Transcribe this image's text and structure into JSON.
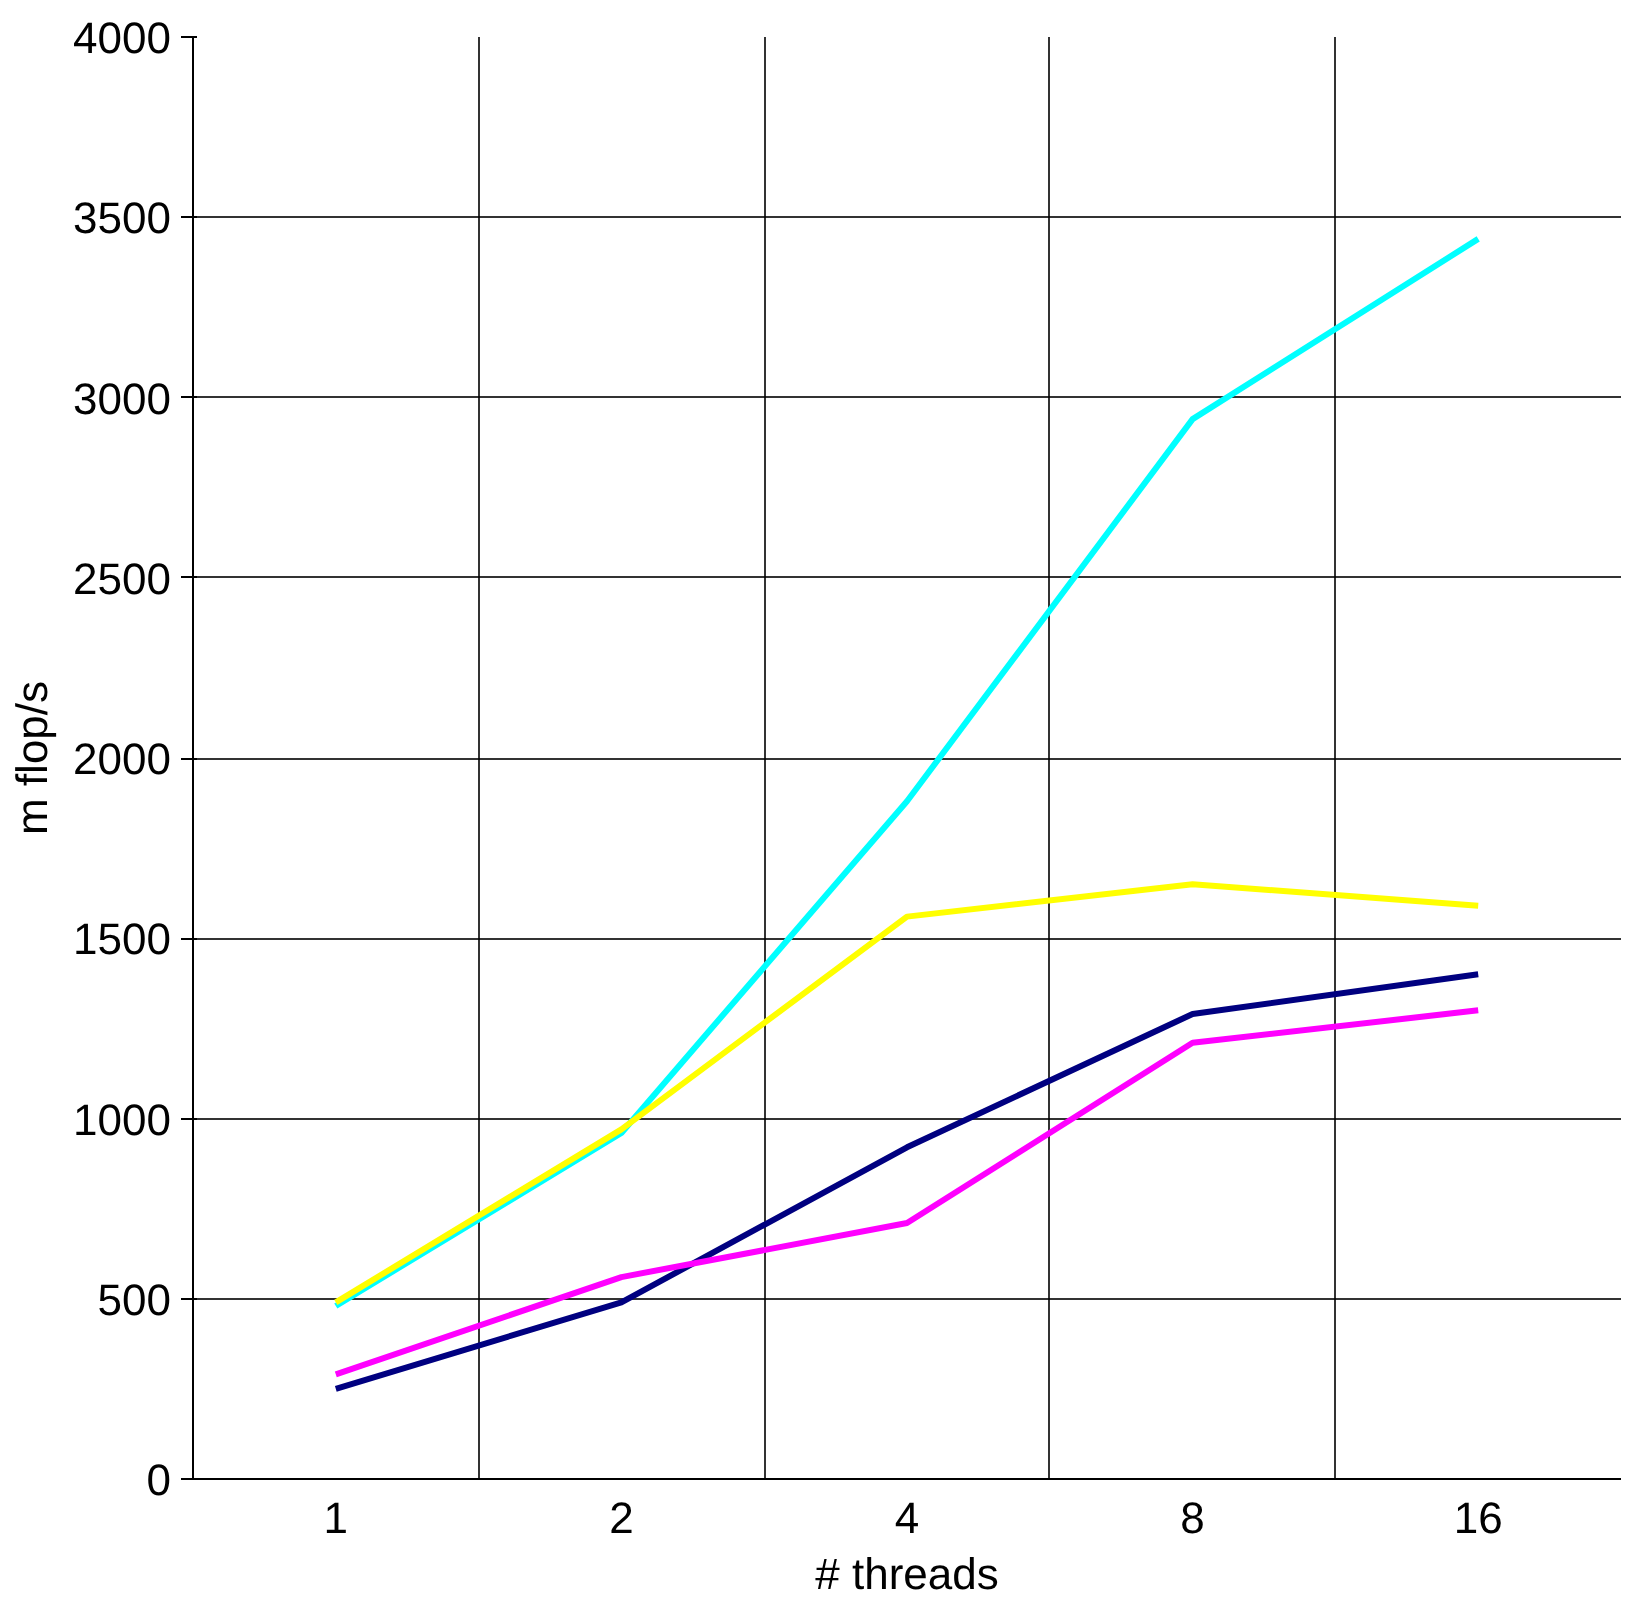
{
  "chart_data": {
    "type": "line",
    "xlabel": "# threads",
    "ylabel": "m flop/s",
    "categories": [
      "1",
      "2",
      "4",
      "8",
      "16"
    ],
    "series": [
      {
        "color": "#00ffff",
        "values": [
          480,
          960,
          1880,
          2940,
          3440
        ]
      },
      {
        "color": "#ffff00",
        "values": [
          490,
          970,
          1560,
          1650,
          1590
        ]
      },
      {
        "color": "#000080",
        "values": [
          250,
          490,
          920,
          1290,
          1400
        ]
      },
      {
        "color": "#ff00ff",
        "values": [
          290,
          560,
          710,
          1210,
          1300
        ]
      }
    ],
    "ylim": [
      0,
      4000
    ],
    "yticks": [
      0,
      500,
      1000,
      1500,
      2000,
      2500,
      3000,
      3500,
      4000
    ],
    "grid": true,
    "marker": "none",
    "line_style": "solid"
  }
}
